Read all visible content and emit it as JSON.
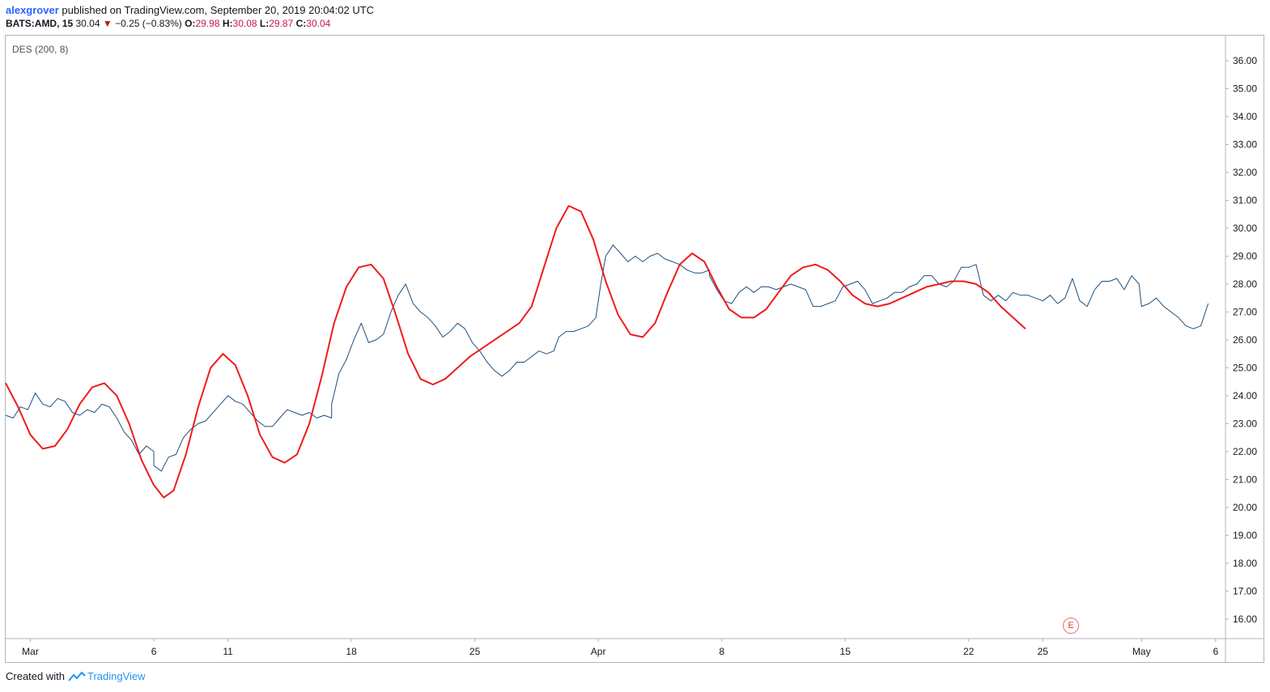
{
  "header": {
    "author": "alexgrover",
    "published": "published on TradingView.com, September 20, 2019 20:04:02 UTC",
    "symbol": "BATS:AMD, 15",
    "last": "30.04",
    "down_arrow": "▼",
    "change": "−0.25 (−0.83%)",
    "o_label": "O:",
    "o_value": "29.98",
    "h_label": "H:",
    "h_value": "30.08",
    "l_label": "L:",
    "l_value": "29.87",
    "c_label": "C:",
    "c_value": "30.04"
  },
  "indicator": {
    "label": "DES (200, 8)"
  },
  "earnings_marker": "E",
  "footer": {
    "created_with": "Created with",
    "brand": "TradingView"
  },
  "colors": {
    "price": "#1e4f7e",
    "des": "#ee1c1c",
    "axis_text": "#131722",
    "axis_line": "#b2b5be"
  },
  "chart_data": {
    "type": "line",
    "xlabel": "",
    "ylabel": "",
    "ylim": [
      15.3,
      36.9
    ],
    "grid": false,
    "y_ticks": [
      16,
      17,
      18,
      19,
      20,
      21,
      22,
      23,
      24,
      25,
      26,
      27,
      28,
      29,
      30,
      31,
      32,
      33,
      34,
      35,
      36
    ],
    "y_tick_labels": [
      "16.00",
      "17.00",
      "18.00",
      "19.00",
      "20.00",
      "21.00",
      "22.00",
      "23.00",
      "24.00",
      "25.00",
      "26.00",
      "27.00",
      "28.00",
      "29.00",
      "30.00",
      "31.00",
      "32.00",
      "33.00",
      "34.00",
      "35.00",
      "36.00"
    ],
    "x_ticks": [
      {
        "label": "Mar",
        "x": 1
      },
      {
        "label": "6",
        "x": 6
      },
      {
        "label": "11",
        "x": 9
      },
      {
        "label": "18",
        "x": 14
      },
      {
        "label": "25",
        "x": 19
      },
      {
        "label": "Apr",
        "x": 24
      },
      {
        "label": "8",
        "x": 29
      },
      {
        "label": "15",
        "x": 34
      },
      {
        "label": "22",
        "x": 39
      },
      {
        "label": "25",
        "x": 42
      },
      {
        "label": "May",
        "x": 46
      },
      {
        "label": "6",
        "x": 49
      }
    ],
    "x_range": [
      0,
      49.4
    ],
    "series": [
      {
        "name": "",
        "points": [
          [
            0.0,
            23.3
          ],
          [
            0.3,
            23.2
          ],
          [
            0.6,
            23.6
          ],
          [
            0.9,
            23.5
          ],
          [
            1.2,
            24.1
          ],
          [
            1.5,
            23.7
          ],
          [
            1.8,
            23.6
          ],
          [
            2.1,
            23.9
          ],
          [
            2.4,
            23.8
          ],
          [
            2.7,
            23.4
          ],
          [
            3.0,
            23.3
          ],
          [
            3.3,
            23.5
          ],
          [
            3.6,
            23.4
          ],
          [
            3.9,
            23.7
          ],
          [
            4.2,
            23.6
          ],
          [
            4.5,
            23.2
          ],
          [
            4.8,
            22.7
          ],
          [
            5.1,
            22.4
          ],
          [
            5.4,
            21.9
          ],
          [
            5.7,
            22.2
          ],
          [
            6.0,
            22.0
          ],
          [
            6.0,
            21.5
          ],
          [
            6.3,
            21.3
          ],
          [
            6.6,
            21.8
          ],
          [
            6.9,
            21.9
          ],
          [
            7.2,
            22.5
          ],
          [
            7.5,
            22.8
          ],
          [
            7.8,
            23.0
          ],
          [
            8.1,
            23.1
          ],
          [
            8.4,
            23.4
          ],
          [
            8.7,
            23.7
          ],
          [
            9.0,
            24.0
          ],
          [
            9.3,
            23.8
          ],
          [
            9.6,
            23.7
          ],
          [
            9.9,
            23.4
          ],
          [
            10.2,
            23.1
          ],
          [
            10.5,
            22.9
          ],
          [
            10.8,
            22.9
          ],
          [
            11.1,
            23.2
          ],
          [
            11.4,
            23.5
          ],
          [
            11.7,
            23.4
          ],
          [
            12.0,
            23.3
          ],
          [
            12.3,
            23.4
          ],
          [
            12.6,
            23.2
          ],
          [
            12.9,
            23.3
          ],
          [
            13.2,
            23.2
          ],
          [
            13.2,
            23.7
          ],
          [
            13.5,
            24.8
          ],
          [
            13.8,
            25.3
          ],
          [
            14.1,
            26.0
          ],
          [
            14.4,
            26.6
          ],
          [
            14.7,
            25.9
          ],
          [
            15.0,
            26.0
          ],
          [
            15.3,
            26.2
          ],
          [
            15.6,
            27.0
          ],
          [
            15.9,
            27.6
          ],
          [
            16.2,
            28.0
          ],
          [
            16.5,
            27.3
          ],
          [
            16.8,
            27.0
          ],
          [
            17.1,
            26.8
          ],
          [
            17.4,
            26.5
          ],
          [
            17.7,
            26.1
          ],
          [
            18.0,
            26.3
          ],
          [
            18.3,
            26.6
          ],
          [
            18.6,
            26.4
          ],
          [
            18.9,
            25.9
          ],
          [
            19.2,
            25.6
          ],
          [
            19.5,
            25.2
          ],
          [
            19.8,
            24.9
          ],
          [
            20.1,
            24.7
          ],
          [
            20.4,
            24.9
          ],
          [
            20.7,
            25.2
          ],
          [
            21.0,
            25.2
          ],
          [
            21.3,
            25.4
          ],
          [
            21.6,
            25.6
          ],
          [
            21.9,
            25.5
          ],
          [
            22.2,
            25.6
          ],
          [
            22.4,
            26.1
          ],
          [
            22.7,
            26.3
          ],
          [
            23.0,
            26.3
          ],
          [
            23.3,
            26.4
          ],
          [
            23.6,
            26.5
          ],
          [
            23.9,
            26.8
          ],
          [
            24.1,
            28.0
          ],
          [
            24.3,
            29.0
          ],
          [
            24.6,
            29.4
          ],
          [
            24.9,
            29.1
          ],
          [
            25.2,
            28.8
          ],
          [
            25.5,
            29.0
          ],
          [
            25.8,
            28.8
          ],
          [
            26.1,
            29.0
          ],
          [
            26.4,
            29.1
          ],
          [
            26.7,
            28.9
          ],
          [
            27.0,
            28.8
          ],
          [
            27.3,
            28.7
          ],
          [
            27.6,
            28.5
          ],
          [
            27.9,
            28.4
          ],
          [
            28.2,
            28.4
          ],
          [
            28.5,
            28.5
          ],
          [
            28.5,
            28.3
          ],
          [
            28.8,
            27.8
          ],
          [
            29.1,
            27.4
          ],
          [
            29.4,
            27.3
          ],
          [
            29.7,
            27.7
          ],
          [
            30.0,
            27.9
          ],
          [
            30.3,
            27.7
          ],
          [
            30.6,
            27.9
          ],
          [
            30.9,
            27.9
          ],
          [
            31.2,
            27.8
          ],
          [
            31.5,
            27.9
          ],
          [
            31.8,
            28.0
          ],
          [
            32.1,
            27.9
          ],
          [
            32.4,
            27.8
          ],
          [
            32.7,
            27.2
          ],
          [
            33.0,
            27.2
          ],
          [
            33.3,
            27.3
          ],
          [
            33.6,
            27.4
          ],
          [
            33.9,
            27.9
          ],
          [
            34.2,
            28.0
          ],
          [
            34.5,
            28.1
          ],
          [
            34.8,
            27.8
          ],
          [
            35.1,
            27.3
          ],
          [
            35.4,
            27.4
          ],
          [
            35.7,
            27.5
          ],
          [
            36.0,
            27.7
          ],
          [
            36.3,
            27.7
          ],
          [
            36.6,
            27.9
          ],
          [
            36.9,
            28.0
          ],
          [
            37.2,
            28.3
          ],
          [
            37.5,
            28.3
          ],
          [
            37.8,
            28.0
          ],
          [
            38.1,
            27.9
          ],
          [
            38.4,
            28.1
          ],
          [
            38.7,
            28.6
          ],
          [
            39.0,
            28.6
          ],
          [
            39.3,
            28.7
          ],
          [
            39.6,
            27.6
          ],
          [
            39.9,
            27.4
          ],
          [
            40.2,
            27.6
          ],
          [
            40.5,
            27.4
          ],
          [
            40.8,
            27.7
          ],
          [
            41.1,
            27.6
          ],
          [
            41.4,
            27.6
          ],
          [
            41.7,
            27.5
          ],
          [
            42.0,
            27.4
          ],
          [
            42.3,
            27.6
          ],
          [
            42.6,
            27.3
          ],
          [
            42.9,
            27.5
          ],
          [
            43.2,
            28.2
          ],
          [
            43.5,
            27.4
          ],
          [
            43.8,
            27.2
          ],
          [
            44.1,
            27.8
          ],
          [
            44.4,
            28.1
          ],
          [
            44.7,
            28.1
          ],
          [
            45.0,
            28.2
          ],
          [
            45.3,
            27.8
          ],
          [
            45.6,
            28.3
          ],
          [
            45.9,
            28.0
          ],
          [
            46.0,
            27.2
          ],
          [
            46.3,
            27.3
          ],
          [
            46.6,
            27.5
          ],
          [
            46.9,
            27.2
          ],
          [
            47.2,
            27.0
          ],
          [
            47.5,
            26.8
          ],
          [
            47.8,
            26.5
          ],
          [
            48.1,
            26.4
          ],
          [
            48.4,
            26.5
          ],
          [
            48.7,
            27.3
          ]
        ]
      },
      {
        "name": "",
        "points": [
          [
            0.0,
            24.45
          ],
          [
            0.5,
            23.6
          ],
          [
            1.0,
            22.6
          ],
          [
            1.5,
            22.1
          ],
          [
            2.0,
            22.2
          ],
          [
            2.5,
            22.8
          ],
          [
            3.0,
            23.7
          ],
          [
            3.5,
            24.3
          ],
          [
            4.0,
            24.45
          ],
          [
            4.5,
            24.0
          ],
          [
            5.0,
            23.0
          ],
          [
            5.5,
            21.7
          ],
          [
            6.0,
            20.8
          ],
          [
            6.4,
            20.35
          ],
          [
            6.8,
            20.6
          ],
          [
            7.3,
            21.9
          ],
          [
            7.8,
            23.6
          ],
          [
            8.3,
            25.0
          ],
          [
            8.8,
            25.5
          ],
          [
            9.3,
            25.1
          ],
          [
            9.8,
            24.0
          ],
          [
            10.3,
            22.6
          ],
          [
            10.8,
            21.8
          ],
          [
            11.3,
            21.6
          ],
          [
            11.8,
            21.9
          ],
          [
            12.3,
            23.0
          ],
          [
            12.8,
            24.7
          ],
          [
            13.3,
            26.6
          ],
          [
            13.8,
            27.9
          ],
          [
            14.3,
            28.6
          ],
          [
            14.8,
            28.7
          ],
          [
            15.3,
            28.2
          ],
          [
            15.8,
            26.9
          ],
          [
            16.3,
            25.5
          ],
          [
            16.8,
            24.6
          ],
          [
            17.3,
            24.4
          ],
          [
            17.8,
            24.6
          ],
          [
            18.3,
            25.0
          ],
          [
            18.8,
            25.4
          ],
          [
            19.3,
            25.7
          ],
          [
            19.8,
            26.0
          ],
          [
            20.3,
            26.3
          ],
          [
            20.8,
            26.6
          ],
          [
            21.3,
            27.2
          ],
          [
            21.8,
            28.6
          ],
          [
            22.3,
            30.0
          ],
          [
            22.8,
            30.8
          ],
          [
            23.3,
            30.6
          ],
          [
            23.8,
            29.6
          ],
          [
            24.3,
            28.1
          ],
          [
            24.8,
            26.9
          ],
          [
            25.3,
            26.2
          ],
          [
            25.8,
            26.1
          ],
          [
            26.3,
            26.6
          ],
          [
            26.8,
            27.7
          ],
          [
            27.3,
            28.7
          ],
          [
            27.8,
            29.1
          ],
          [
            28.3,
            28.8
          ],
          [
            28.8,
            27.9
          ],
          [
            29.3,
            27.1
          ],
          [
            29.8,
            26.8
          ],
          [
            30.3,
            26.8
          ],
          [
            30.8,
            27.1
          ],
          [
            31.3,
            27.7
          ],
          [
            31.8,
            28.3
          ],
          [
            32.3,
            28.6
          ],
          [
            32.8,
            28.7
          ],
          [
            33.3,
            28.5
          ],
          [
            33.8,
            28.1
          ],
          [
            34.3,
            27.6
          ],
          [
            34.8,
            27.3
          ],
          [
            35.3,
            27.2
          ],
          [
            35.8,
            27.3
          ],
          [
            36.3,
            27.5
          ],
          [
            36.8,
            27.7
          ],
          [
            37.3,
            27.9
          ],
          [
            37.8,
            28.0
          ],
          [
            38.3,
            28.1
          ],
          [
            38.8,
            28.1
          ],
          [
            39.3,
            28.0
          ],
          [
            39.8,
            27.7
          ],
          [
            40.3,
            27.2
          ],
          [
            40.8,
            26.8
          ],
          [
            41.3,
            26.4
          ]
        ]
      }
    ]
  }
}
